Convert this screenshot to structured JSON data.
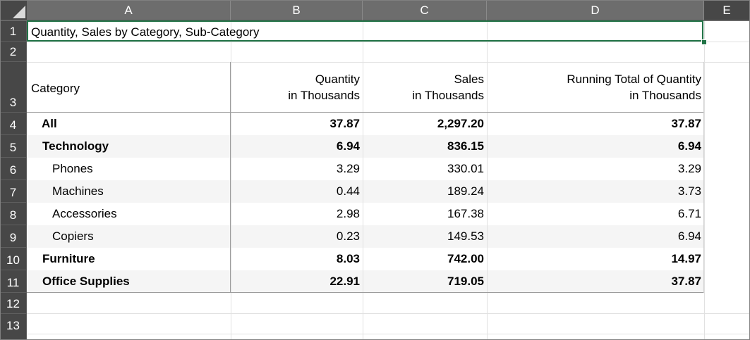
{
  "columns": [
    "A",
    "B",
    "C",
    "D",
    "E"
  ],
  "rows": [
    "1",
    "2",
    "3",
    "4",
    "5",
    "6",
    "7",
    "8",
    "9",
    "10",
    "11",
    "12",
    "13"
  ],
  "title": "Quantity, Sales by Category, Sub-Category",
  "header": {
    "category": "Category",
    "quantity_l1": "Quantity",
    "quantity_l2": "in Thousands",
    "sales_l1": "Sales",
    "sales_l2": "in Thousands",
    "running_l1": "Running Total of Quantity",
    "running_l2": "in Thousands"
  },
  "data": [
    {
      "label": "All",
      "level": 0,
      "bold": true,
      "quantity": "37.87",
      "sales": "2,297.20",
      "running": "37.87"
    },
    {
      "label": "Technology",
      "level": 1,
      "bold": true,
      "quantity": "6.94",
      "sales": "836.15",
      "running": "6.94"
    },
    {
      "label": "Phones",
      "level": 2,
      "bold": false,
      "quantity": "3.29",
      "sales": "330.01",
      "running": "3.29"
    },
    {
      "label": "Machines",
      "level": 2,
      "bold": false,
      "quantity": "0.44",
      "sales": "189.24",
      "running": "3.73"
    },
    {
      "label": "Accessories",
      "level": 2,
      "bold": false,
      "quantity": "2.98",
      "sales": "167.38",
      "running": "6.71"
    },
    {
      "label": "Copiers",
      "level": 2,
      "bold": false,
      "quantity": "0.23",
      "sales": "149.53",
      "running": "6.94"
    },
    {
      "label": "Furniture",
      "level": 1,
      "bold": true,
      "quantity": "8.03",
      "sales": "742.00",
      "running": "14.97"
    },
    {
      "label": "Office Supplies",
      "level": 1,
      "bold": true,
      "quantity": "22.91",
      "sales": "719.05",
      "running": "37.87"
    }
  ],
  "colors": {
    "header_bg": "#6d6d6d",
    "rowheader_bg": "#474747",
    "selection": "#217346",
    "band": "#f5f5f5"
  }
}
